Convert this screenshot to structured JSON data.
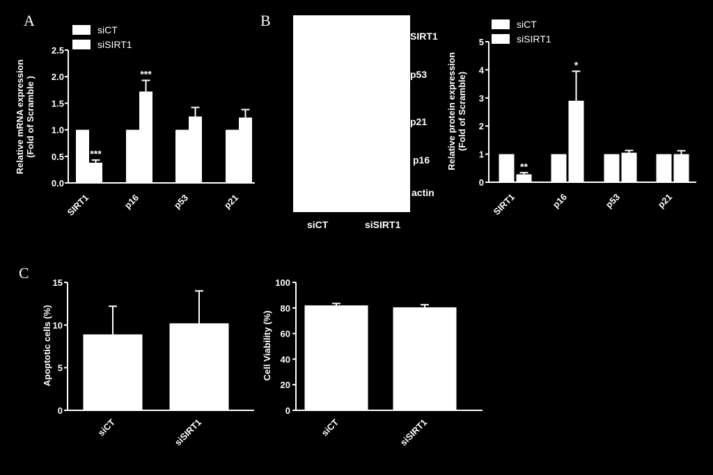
{
  "panels": {
    "a": "A",
    "b": "B",
    "c": "C"
  },
  "western_blot": {
    "bands": [
      "SIRT1",
      "p53",
      "p21",
      "p16",
      "actin"
    ],
    "lanes": [
      "siCT",
      "siSIRT1"
    ]
  },
  "chart_data": [
    {
      "id": "A",
      "type": "bar",
      "ylabel": [
        "Relative mRNA expression",
        "(Fold of Scramble )"
      ],
      "ylim": [
        0,
        2.5
      ],
      "yticks": [
        "0.0",
        "0.5",
        "1.0",
        "1.5",
        "2.0",
        "2.5"
      ],
      "categories": [
        "SIRT1",
        "p16",
        "p53",
        "p21"
      ],
      "legend": "top-left",
      "series": [
        {
          "name": "siCT",
          "values": [
            1.0,
            1.0,
            1.0,
            1.0
          ],
          "err": [
            0,
            0,
            0,
            0
          ]
        },
        {
          "name": "siSIRT1",
          "values": [
            0.38,
            1.72,
            1.25,
            1.23
          ],
          "err": [
            0.05,
            0.21,
            0.17,
            0.15
          ]
        }
      ],
      "annotations": [
        {
          "category": "SIRT1",
          "series": "siSIRT1",
          "text": "***"
        },
        {
          "category": "p16",
          "series": "siSIRT1",
          "text": "***"
        }
      ]
    },
    {
      "id": "B",
      "type": "bar",
      "ylabel": [
        "Relative protein expression",
        "(Fold of Scramble)"
      ],
      "ylim": [
        0,
        5
      ],
      "yticks": [
        "0",
        "1",
        "2",
        "3",
        "4",
        "5"
      ],
      "categories": [
        "SIRT1",
        "p16",
        "p53",
        "p21"
      ],
      "legend": "top-left",
      "series": [
        {
          "name": "siCT",
          "values": [
            1.0,
            1.0,
            1.0,
            1.0
          ],
          "err": [
            0,
            0,
            0,
            0
          ]
        },
        {
          "name": "siSIRT1",
          "values": [
            0.28,
            2.9,
            1.05,
            1.0
          ],
          "err": [
            0.06,
            1.05,
            0.08,
            0.12
          ]
        }
      ],
      "annotations": [
        {
          "category": "SIRT1",
          "series": "siSIRT1",
          "text": "**"
        },
        {
          "category": "p16",
          "series": "siSIRT1",
          "text": "*"
        }
      ]
    },
    {
      "id": "C1",
      "type": "bar",
      "ylabel": [
        "Apoptotic cells (%)"
      ],
      "ylim": [
        0,
        15
      ],
      "yticks": [
        "0",
        "5",
        "10",
        "15"
      ],
      "categories": [
        "siCT",
        "siSIRT1"
      ],
      "values": [
        8.9,
        10.2
      ],
      "err": [
        3.3,
        3.8
      ]
    },
    {
      "id": "C2",
      "type": "bar",
      "ylabel": [
        "Cell Viability (%)"
      ],
      "ylim": [
        0,
        100
      ],
      "yticks": [
        "0",
        "20",
        "40",
        "60",
        "80",
        "100"
      ],
      "categories": [
        "siCT",
        "siSIRT1"
      ],
      "values": [
        82,
        80.5
      ],
      "err": [
        1.5,
        2.0
      ]
    }
  ]
}
